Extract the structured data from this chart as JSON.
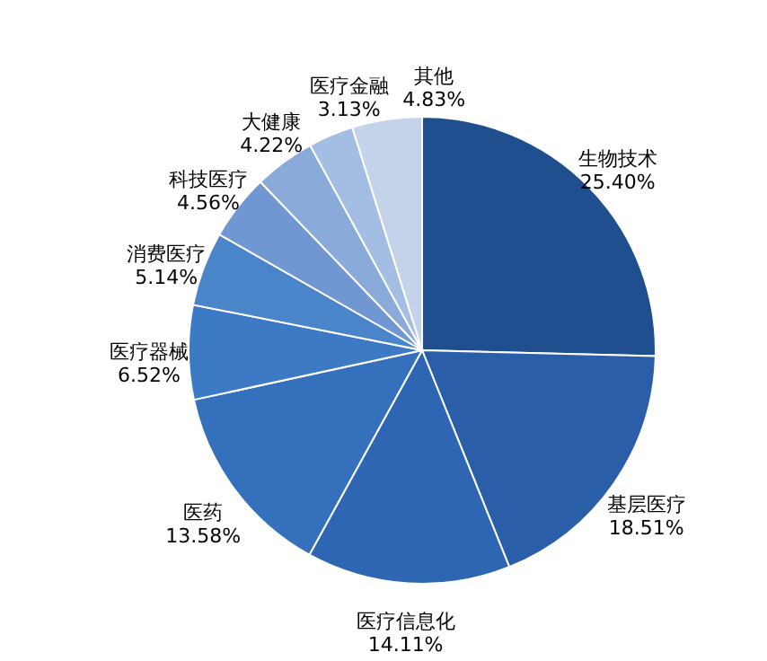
{
  "chart_data": {
    "type": "pie",
    "categories": [
      "生物技术",
      "基层医疗",
      "医疗信息化",
      "医药",
      "医疗器械",
      "消费医疗",
      "科技医疗",
      "大健康",
      "医疗金融",
      "其他"
    ],
    "values": [
      25.4,
      18.51,
      14.11,
      13.58,
      6.52,
      5.14,
      4.56,
      4.22,
      3.13,
      4.83
    ],
    "value_labels": [
      "25.40%",
      "18.51%",
      "14.11%",
      "13.58%",
      "6.52%",
      "5.14%",
      "4.56%",
      "4.22%",
      "3.13%",
      "4.83%"
    ],
    "colors": [
      "#1f4f8f",
      "#2a5ea8",
      "#2e66b3",
      "#3570bd",
      "#3c7ac5",
      "#4a84c9",
      "#7097d1",
      "#8aabd9",
      "#a4bde2",
      "#c4d2ea"
    ]
  }
}
